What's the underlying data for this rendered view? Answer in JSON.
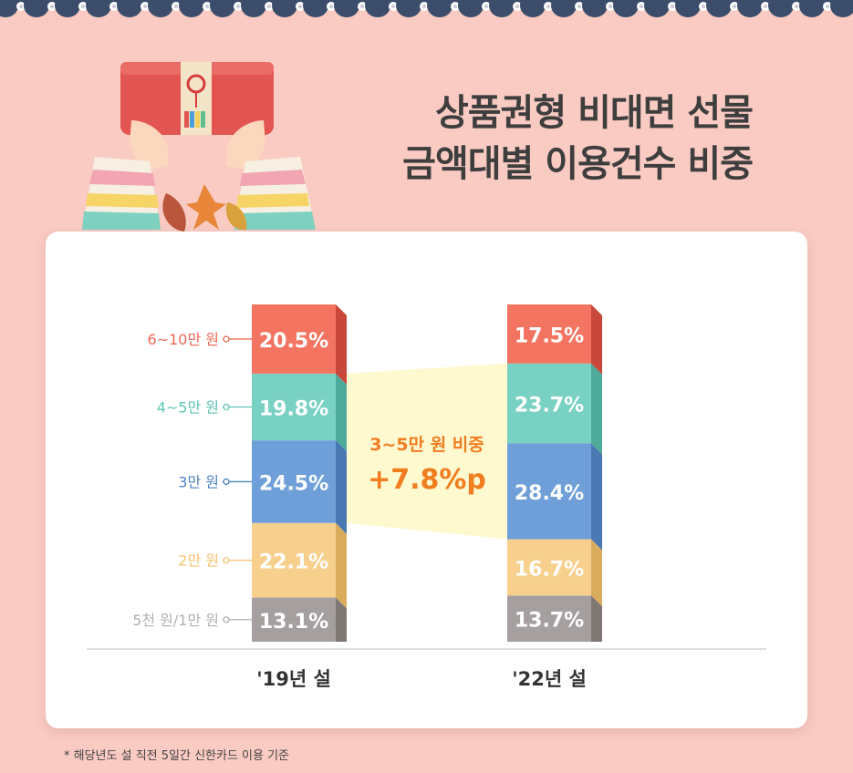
{
  "title": {
    "line1": "상품권형 비대면 선물",
    "line2": "금액대별 이용건수 비중"
  },
  "footnote": "* 해당년도 설 직전 5일간 신한카드 이용 기준",
  "colors": {
    "background": "#f9cbc3",
    "card": "#ffffff",
    "highlight": "#fff9cf",
    "highlight_text": "#f07d1f",
    "border_navy": "#3b4d6b"
  },
  "chart_data": {
    "type": "bar",
    "stacked": true,
    "categories": [
      "'19년 설",
      "'22년 설"
    ],
    "series": [
      {
        "name": "5천 원/1만 원",
        "values": [
          13.1,
          13.7
        ],
        "labels": [
          "13.1%",
          "13.7%"
        ],
        "color": "#a5a09f",
        "side": "#7f7773",
        "label_color": "#b4b0ae"
      },
      {
        "name": "2만 원",
        "values": [
          22.1,
          16.7
        ],
        "labels": [
          "22.1%",
          "16.7%"
        ],
        "color": "#f8d08e",
        "side": "#d9ac5e",
        "label_color": "#f4c371"
      },
      {
        "name": "3만 원",
        "values": [
          24.5,
          28.4
        ],
        "labels": [
          "24.5%",
          "28.4%"
        ],
        "color": "#6f9fd8",
        "side": "#4a78b2",
        "label_color": "#4f82c2"
      },
      {
        "name": "4~5만 원",
        "values": [
          19.8,
          23.7
        ],
        "labels": [
          "19.8%",
          "23.7%"
        ],
        "color": "#79d1c3",
        "side": "#4eaa9b",
        "label_color": "#5fc6b4"
      },
      {
        "name": "6~10만 원",
        "values": [
          20.5,
          17.5
        ],
        "labels": [
          "20.5%",
          "17.5%"
        ],
        "color": "#f27461",
        "side": "#c9473a",
        "label_color": "#ee6a57"
      }
    ],
    "annotation": {
      "line1": "3~5만 원 비중",
      "line2": "+7.8%p"
    }
  }
}
